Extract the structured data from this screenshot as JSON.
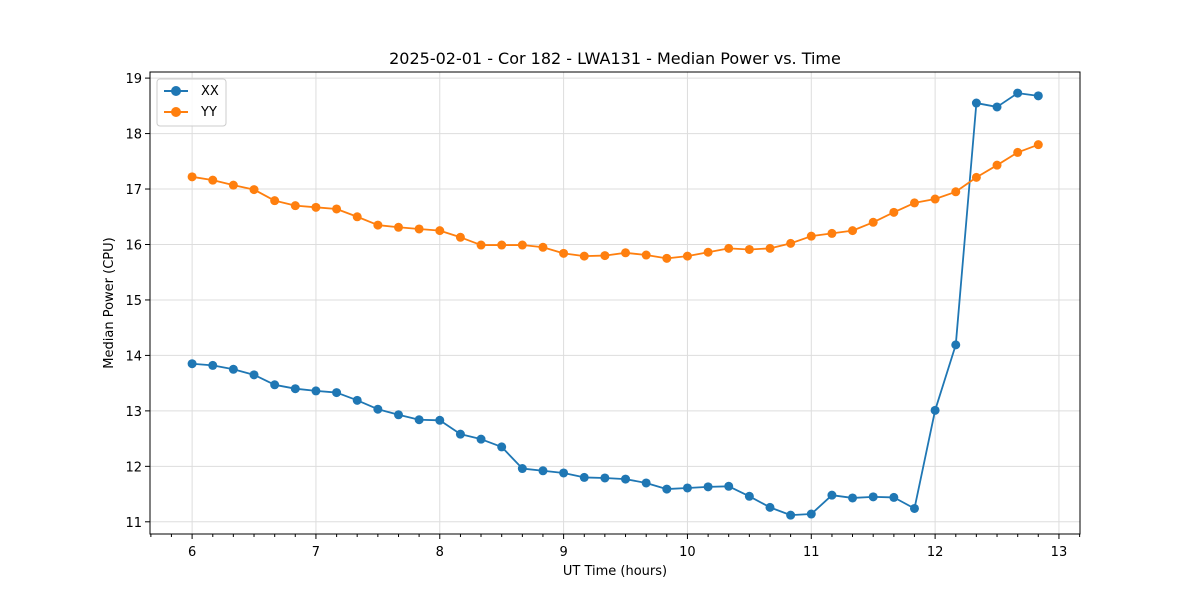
{
  "chart_data": {
    "type": "line",
    "title": "2025-02-01 - Cor 182 - LWA131 - Median Power vs. Time",
    "xlabel": "UT Time (hours)",
    "ylabel": "Median Power (CPU)",
    "xlim": [
      5.66,
      13.17
    ],
    "ylim": [
      10.78,
      19.11
    ],
    "xticks": [
      6,
      7,
      8,
      9,
      10,
      11,
      12,
      13
    ],
    "xtick_labels": [
      "6",
      "7",
      "8",
      "9",
      "10",
      "11",
      "12",
      "13"
    ],
    "yticks": [
      11,
      12,
      13,
      14,
      15,
      16,
      17,
      18,
      19
    ],
    "ytick_labels": [
      "11",
      "12",
      "13",
      "14",
      "15",
      "16",
      "17",
      "18",
      "19"
    ],
    "grid": true,
    "legend_position": "top-left",
    "x": [
      6.0,
      6.1667,
      6.3333,
      6.5,
      6.6667,
      6.8333,
      7.0,
      7.1667,
      7.3333,
      7.5,
      7.6667,
      7.8333,
      8.0,
      8.1667,
      8.3333,
      8.5,
      8.6667,
      8.8333,
      9.0,
      9.1667,
      9.3333,
      9.5,
      9.6667,
      9.8333,
      10.0,
      10.1667,
      10.3333,
      10.5,
      10.6667,
      10.8333,
      11.0,
      11.1667,
      11.3333,
      11.5,
      11.6667,
      11.8333,
      12.0,
      12.1667,
      12.3333,
      12.5,
      12.6667,
      12.8333
    ],
    "series": [
      {
        "name": "XX",
        "color": "#1f77b4",
        "values": [
          13.85,
          13.82,
          13.75,
          13.65,
          13.47,
          13.4,
          13.36,
          13.33,
          13.19,
          13.03,
          12.93,
          12.84,
          12.83,
          12.58,
          12.49,
          12.35,
          11.96,
          11.92,
          11.88,
          11.8,
          11.79,
          11.77,
          11.7,
          11.59,
          11.61,
          11.63,
          11.64,
          11.46,
          11.26,
          11.12,
          11.14,
          11.48,
          11.43,
          11.45,
          11.44,
          11.24,
          13.01,
          14.19,
          18.55,
          18.48,
          18.73,
          18.68
        ]
      },
      {
        "name": "YY",
        "color": "#ff7f0e",
        "values": [
          17.22,
          17.16,
          17.07,
          16.99,
          16.79,
          16.7,
          16.67,
          16.64,
          16.5,
          16.35,
          16.31,
          16.28,
          16.25,
          16.13,
          15.99,
          15.99,
          15.99,
          15.95,
          15.84,
          15.79,
          15.8,
          15.85,
          15.81,
          15.75,
          15.79,
          15.86,
          15.93,
          15.91,
          15.93,
          16.02,
          16.15,
          16.2,
          16.25,
          16.4,
          16.58,
          16.75,
          16.82,
          16.95,
          17.21,
          17.43,
          17.66,
          17.8
        ]
      }
    ]
  }
}
